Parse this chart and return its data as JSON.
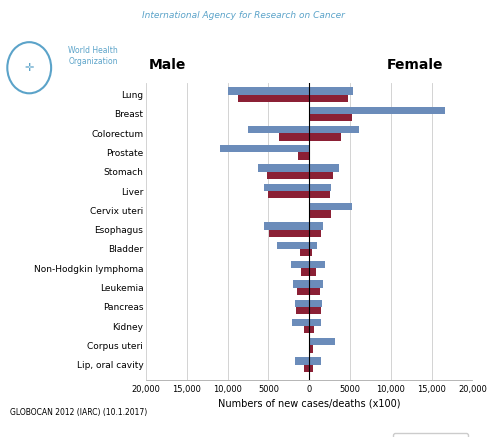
{
  "categories": [
    "Lung",
    "Breast",
    "Colorectum",
    "Prostate",
    "Stomach",
    "Liver",
    "Cervix uteri",
    "Esophagus",
    "Bladder",
    "Non-Hodgkin lymphoma",
    "Leukemia",
    "Pancreas",
    "Kidney",
    "Corpus uteri",
    "Lip, oral cavity"
  ],
  "male_new_cases": [
    10000,
    0,
    7500,
    11000,
    6300,
    5500,
    0,
    5500,
    3900,
    2200,
    2000,
    1700,
    2100,
    0,
    1800
  ],
  "male_deaths": [
    8700,
    0,
    3700,
    1400,
    5200,
    5000,
    0,
    4900,
    1100,
    950,
    1500,
    1600,
    600,
    0,
    700
  ],
  "female_new_cases": [
    5400,
    16700,
    6100,
    0,
    3600,
    2700,
    5300,
    1700,
    1000,
    1900,
    1700,
    1600,
    1500,
    3200,
    1500
  ],
  "female_deaths": [
    4800,
    5200,
    3900,
    0,
    2900,
    2600,
    2700,
    1400,
    300,
    800,
    1300,
    1500,
    600,
    500,
    400
  ],
  "color_new_cases": "#6b8cba",
  "color_deaths": "#8b2035",
  "xlim": 20000,
  "xlabel": "Numbers of new cases/deaths (x100)",
  "title_iarc": "International Agency for Research on Cancer",
  "title_male": "Male",
  "title_female": "Female",
  "source_text": "GLOBOCAN 2012 (IARC) (10.1.2017)",
  "bar_height": 0.38,
  "background_color": "#ffffff",
  "grid_color": "#cccccc",
  "xtick_vals": [
    -20000,
    -15000,
    -10000,
    -5000,
    0,
    5000,
    10000,
    15000,
    20000
  ],
  "xtick_labels": [
    "20,000",
    "15,000",
    "10,000",
    "5000",
    "0",
    "5000",
    "10,000",
    "15,000",
    "20,000"
  ]
}
